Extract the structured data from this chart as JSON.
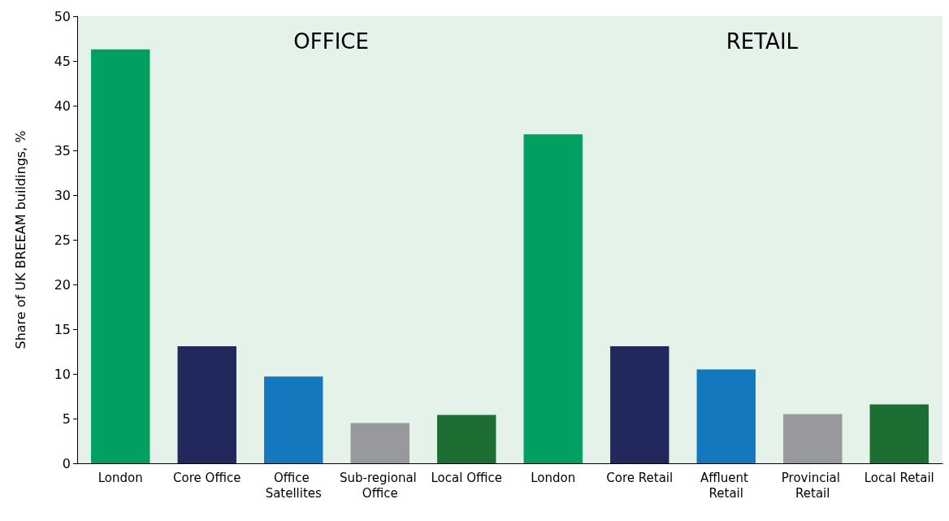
{
  "chart_data": {
    "type": "bar",
    "categories": [
      "London",
      "Core Office",
      "Office Satellites",
      "Sub-regional Office",
      "Local Office",
      "London",
      "Core Retail",
      "Affluent Retail",
      "Provincial Retail",
      "Local Retail"
    ],
    "values": [
      46.3,
      13.1,
      9.7,
      4.5,
      5.4,
      36.8,
      13.1,
      10.5,
      5.5,
      6.6
    ],
    "colors": [
      "#00a160",
      "#21295c",
      "#1378be",
      "#98999c",
      "#1c6e33",
      "#00a160",
      "#21295c",
      "#1378be",
      "#98999c",
      "#1c6e33"
    ],
    "ylabel": "Share of UK BREEAM buildings, %",
    "ylim": [
      0,
      50
    ],
    "yticks": [
      0,
      5,
      10,
      15,
      20,
      25,
      30,
      35,
      40,
      45,
      50
    ],
    "annotations": [
      "OFFICE",
      "RETAIL"
    ]
  }
}
